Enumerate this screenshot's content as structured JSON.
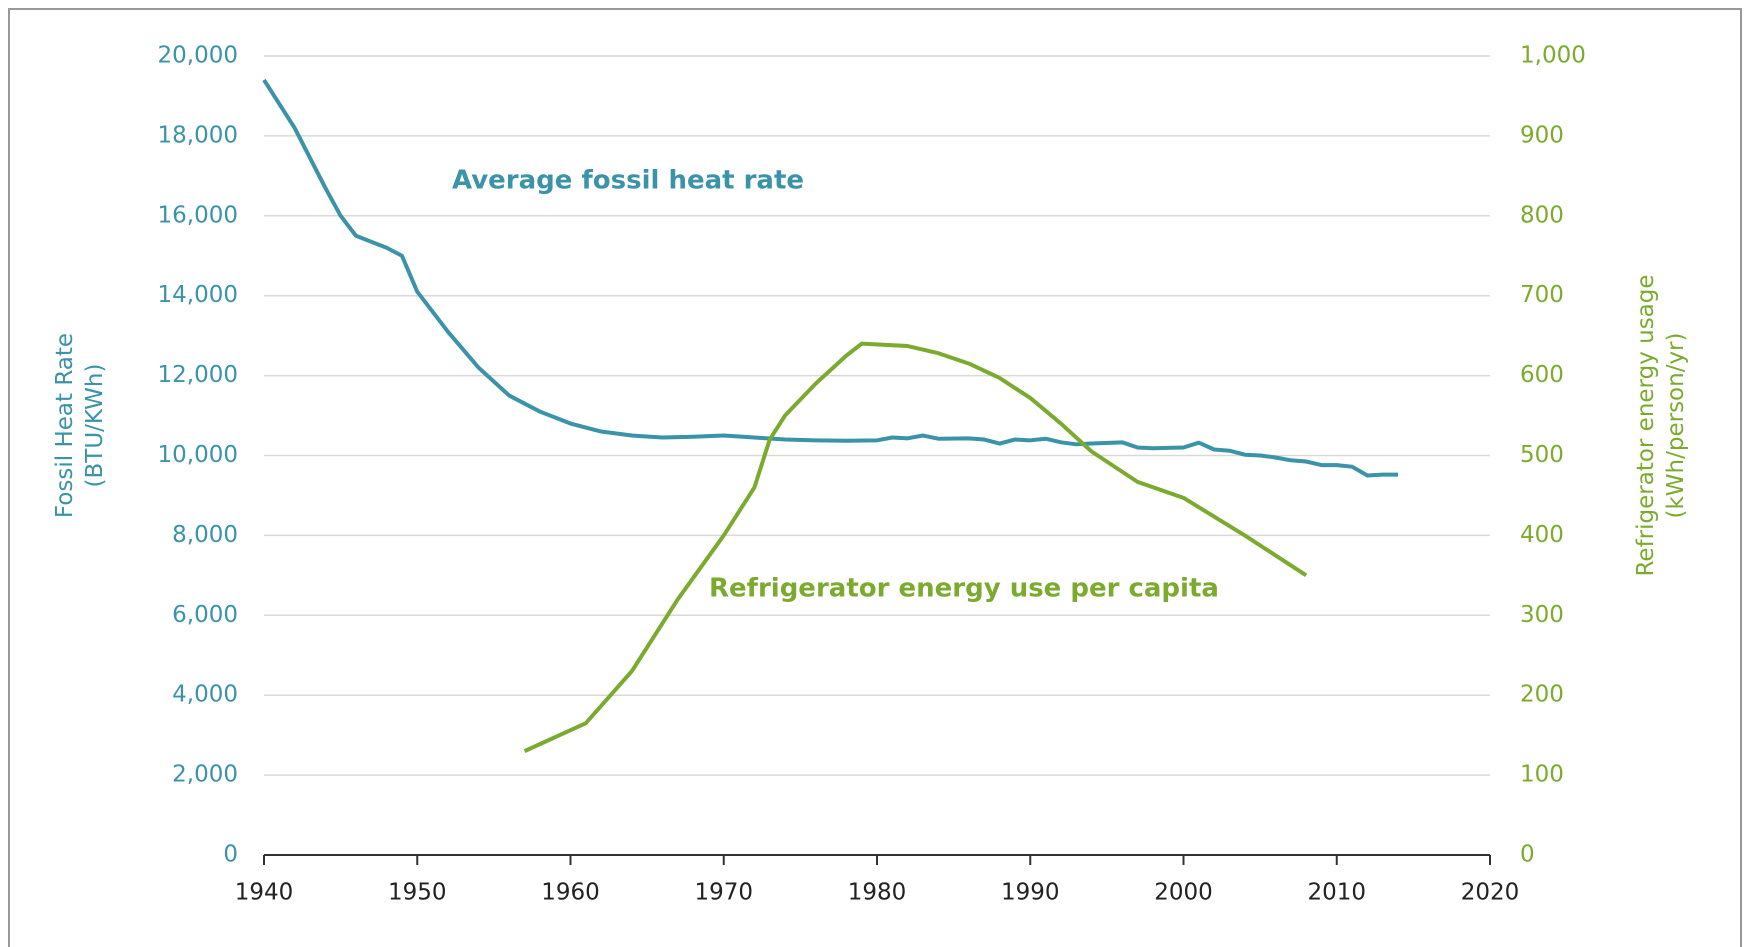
{
  "chart_data": {
    "type": "line",
    "ylabel": [
      "Fossil Heat Rate",
      "(BTU/KWh)"
    ],
    "y2label": [
      "Refrigerator energy usage",
      "(kWh/person/yr)"
    ],
    "xlim": [
      1940,
      2020
    ],
    "xticks": [
      1940,
      1950,
      1960,
      1970,
      1980,
      1990,
      2000,
      2010,
      2020
    ],
    "ylim": [
      0,
      20000
    ],
    "yticks": [
      0,
      {
        "value": 2000,
        "label": "2,000"
      },
      {
        "value": 4000,
        "label": "4,000"
      },
      {
        "value": 6000,
        "label": "6,000"
      },
      {
        "value": 8000,
        "label": "8,000"
      },
      {
        "value": 10000,
        "label": "10,000"
      },
      {
        "value": 12000,
        "label": "12,000"
      },
      {
        "value": 14000,
        "label": "14,000"
      },
      {
        "value": 16000,
        "label": "16,000"
      },
      {
        "value": 18000,
        "label": "18,000"
      },
      {
        "value": 20000,
        "label": "20,000"
      }
    ],
    "y2lim": [
      0,
      1000
    ],
    "y2ticks": [
      0,
      100,
      200,
      300,
      400,
      500,
      600,
      700,
      800,
      900,
      {
        "value": 1000,
        "label": "1,000"
      }
    ],
    "grid": true,
    "y_color": "#3a93a8",
    "y2_color": "#7aab2e",
    "series": [
      {
        "name": "Average fossil heat rate",
        "color": "#3a93a8",
        "x": [
          1940,
          1942,
          1944,
          1945,
          1946,
          1948,
          1949,
          1950,
          1952,
          1954,
          1956,
          1958,
          1960,
          1962,
          1964,
          1966,
          1968,
          1970,
          1972,
          1974,
          1976,
          1978,
          1980,
          1981,
          1982,
          1983,
          1984,
          1986,
          1987,
          1988,
          1989,
          1990,
          1991,
          1992,
          1993,
          1994,
          1996,
          1997,
          1998,
          2000,
          2001,
          2002,
          2003,
          2004,
          2005,
          2006,
          2007,
          2008,
          2009,
          2010,
          2011,
          2012,
          2013,
          2014
        ],
        "values": [
          19400,
          18200,
          16700,
          16000,
          15500,
          15200,
          15000,
          14100,
          13100,
          12200,
          11500,
          11100,
          10800,
          10600,
          10500,
          10450,
          10470,
          10500,
          10450,
          10400,
          10380,
          10370,
          10380,
          10450,
          10430,
          10500,
          10420,
          10430,
          10400,
          10300,
          10400,
          10380,
          10420,
          10330,
          10280,
          10300,
          10330,
          10200,
          10180,
          10200,
          10320,
          10150,
          10120,
          10020,
          10000,
          9950,
          9880,
          9850,
          9760,
          9760,
          9720,
          9500,
          9520,
          9520
        ]
      },
      {
        "name": "Refrigerator energy use per capita",
        "color": "#7aab2e",
        "axis": "y2",
        "x": [
          1957,
          1961,
          1964,
          1967,
          1970,
          1972,
          1973,
          1974,
          1976,
          1978,
          1979,
          1982,
          1984,
          1986,
          1988,
          1990,
          1992,
          1994,
          1997,
          2000,
          2004,
          2008
        ],
        "values": [
          130,
          165,
          230,
          320,
          400,
          460,
          520,
          550,
          590,
          625,
          640,
          637,
          628,
          615,
          597,
          572,
          540,
          505,
          467,
          447,
          400,
          350
        ]
      }
    ]
  }
}
